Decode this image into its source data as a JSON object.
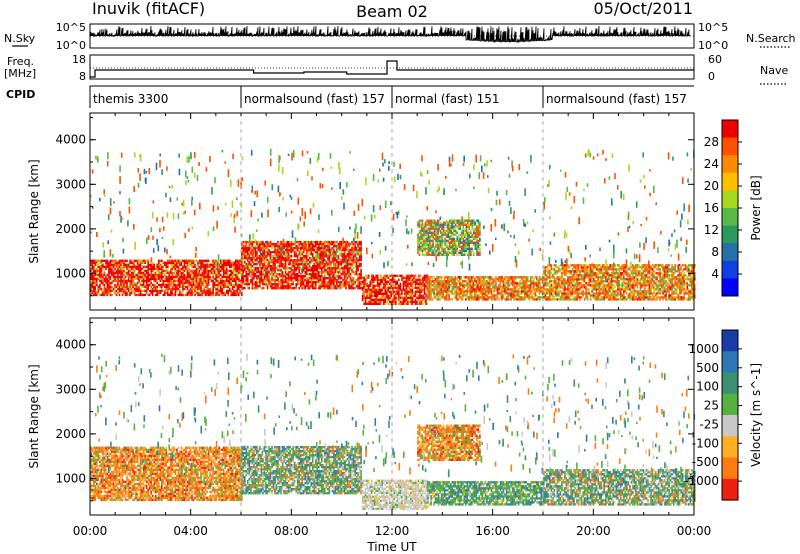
{
  "header": {
    "station": "Inuvik (fitACF)",
    "beam": "Beam 02",
    "date": "05/Oct/2011"
  },
  "side_labels": {
    "nsky": "N.Sky",
    "nsearch": "N.Search",
    "freq": "Freq.",
    "freq_unit": "[MHz]",
    "nave": "Nave",
    "cpid": "CPID"
  },
  "noise_axis": {
    "left_ticks": [
      "10^5",
      "10^0"
    ],
    "right_ticks": [
      "10^5",
      "10^0"
    ]
  },
  "freq_axis": {
    "left_ticks": [
      "18",
      "8"
    ],
    "right_ticks": [
      "60",
      "0"
    ]
  },
  "cpid_segments": [
    {
      "label": "themis 3300",
      "start_hour": 0,
      "end_hour": 6
    },
    {
      "label": "normalsound (fast) 157",
      "start_hour": 6,
      "end_hour": 12
    },
    {
      "label": "normal (fast) 151",
      "start_hour": 12,
      "end_hour": 18
    },
    {
      "label": "normalsound (fast) 157",
      "start_hour": 18,
      "end_hour": 24
    }
  ],
  "x_axis": {
    "label": "Time UT",
    "ticks": [
      "00:00",
      "04:00",
      "08:00",
      "12:00",
      "16:00",
      "20:00",
      "00:00"
    ],
    "range_hours": [
      0,
      24
    ]
  },
  "chart_data": [
    {
      "type": "heatmap",
      "name": "power",
      "xlabel": "Time UT",
      "ylabel": "Slant Range [km]",
      "yticks": [
        "1000",
        "2000",
        "3000",
        "4000"
      ],
      "ylim": [
        180,
        4600
      ],
      "colorbar_label": "Power [dB]",
      "colorbar_ticks": [
        "28",
        "24",
        "20",
        "16",
        "12",
        "8",
        "4"
      ],
      "colors": [
        "#ee0000",
        "#ff5000",
        "#ff8a00",
        "#ffc000",
        "#a8d820",
        "#58b848",
        "#2c9a60",
        "#2470a8",
        "#1040e0",
        "#0000ff"
      ],
      "bands": [
        {
          "t0": 0.0,
          "t1": 6.0,
          "r0": 500,
          "r1": 1300,
          "level": "high"
        },
        {
          "t0": 6.0,
          "t1": 10.8,
          "r0": 650,
          "r1": 1700,
          "level": "high"
        },
        {
          "t0": 10.8,
          "t1": 13.4,
          "r0": 300,
          "r1": 950,
          "level": "high"
        },
        {
          "t0": 13.4,
          "t1": 18.0,
          "r0": 400,
          "r1": 900,
          "level": "medium"
        },
        {
          "t0": 18.0,
          "t1": 24.0,
          "r0": 400,
          "r1": 1200,
          "level": "medium"
        },
        {
          "t0": 13.0,
          "t1": 15.5,
          "r0": 1400,
          "r1": 2200,
          "level": "low"
        }
      ]
    },
    {
      "type": "heatmap",
      "name": "velocity",
      "xlabel": "Time UT",
      "ylabel": "Slant Range [km]",
      "yticks": [
        "1000",
        "2000",
        "3000",
        "4000"
      ],
      "ylim": [
        180,
        4600
      ],
      "colorbar_label": "Velocity [m s^-1]",
      "colorbar_ticks": [
        "1000",
        "500",
        "100",
        "25",
        "-25",
        "-100",
        "-500",
        "-1000"
      ],
      "colors": [
        "#1a3ca8",
        "#2e78b8",
        "#3c9070",
        "#58b040",
        "#c8c8c8",
        "#ffb020",
        "#ff7a10",
        "#ee2010"
      ],
      "bands": [
        {
          "t0": 0.0,
          "t1": 6.0,
          "r0": 500,
          "r1": 1700,
          "level": "neg"
        },
        {
          "t0": 6.0,
          "t1": 10.8,
          "r0": 650,
          "r1": 1700,
          "level": "mixed"
        },
        {
          "t0": 10.8,
          "t1": 13.4,
          "r0": 300,
          "r1": 950,
          "level": "zero"
        },
        {
          "t0": 13.4,
          "t1": 18.0,
          "r0": 400,
          "r1": 900,
          "level": "pos"
        },
        {
          "t0": 18.0,
          "t1": 24.0,
          "r0": 400,
          "r1": 1200,
          "level": "mixed"
        },
        {
          "t0": 13.0,
          "t1": 15.5,
          "r0": 1400,
          "r1": 2200,
          "level": "neg"
        }
      ]
    }
  ]
}
